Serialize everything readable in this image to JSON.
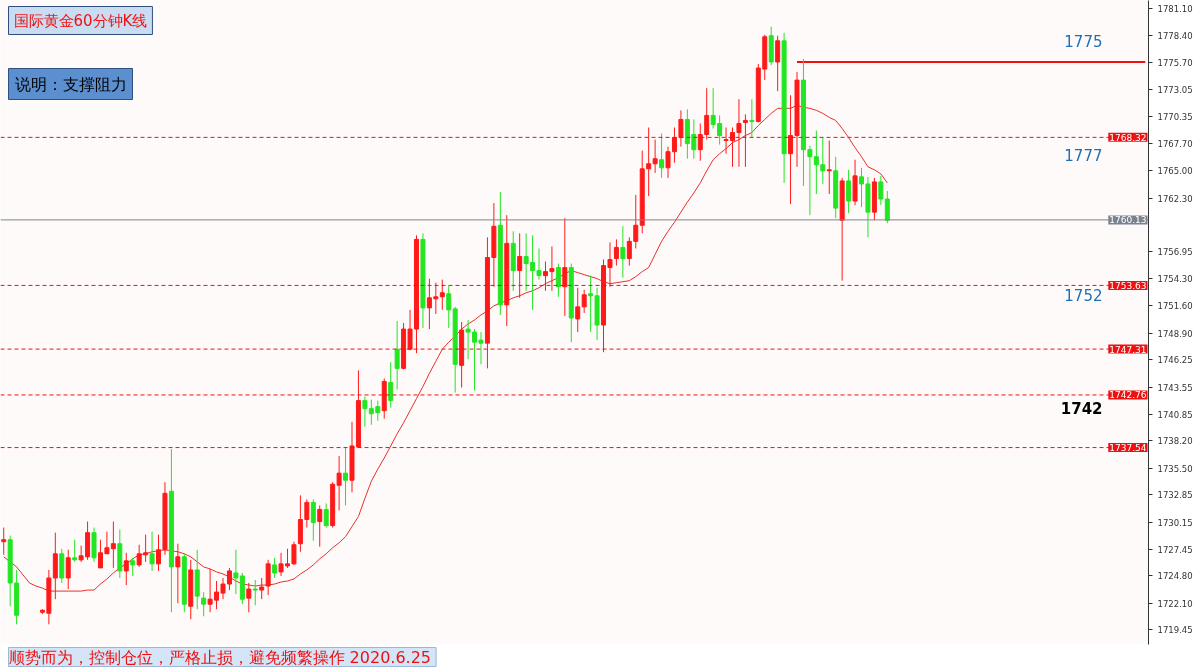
{
  "chart_data": {
    "type": "candlestick",
    "title": "国际黄金60分钟K线",
    "subtitle": "说明：支撑阻力",
    "categories": [
      null,
      null,
      null,
      null,
      null,
      null,
      null,
      null,
      null,
      null,
      null,
      null,
      null,
      null,
      null,
      null,
      null,
      null,
      null,
      null,
      null,
      null,
      null,
      null,
      null,
      null,
      null,
      null,
      null,
      null,
      null,
      null,
      null,
      null,
      null,
      null,
      null,
      null,
      null,
      null,
      null,
      null,
      null,
      null,
      null,
      null,
      null,
      null,
      null,
      null,
      null,
      null,
      null,
      null,
      null,
      null,
      null,
      null,
      null,
      null,
      null,
      null,
      null,
      null,
      null,
      null,
      null,
      null,
      null,
      null,
      null,
      null,
      null,
      null,
      null,
      null,
      null,
      null,
      null,
      null,
      null,
      null,
      null,
      null,
      null,
      null,
      null,
      null,
      null,
      null,
      null,
      null,
      null,
      null,
      null,
      null,
      null,
      null,
      null,
      null,
      null,
      null,
      null,
      null,
      null,
      null,
      null,
      null,
      null,
      null,
      null,
      null,
      null,
      null,
      null,
      null,
      null,
      null,
      null,
      null,
      null,
      null,
      null,
      null,
      null,
      null,
      null,
      null,
      null,
      null,
      null,
      null,
      null,
      null,
      null,
      null,
      null,
      null,
      null,
      null,
      null,
      null,
      null,
      null,
      null,
      null,
      null,
      null,
      null,
      null,
      null,
      null,
      null,
      null,
      null,
      null,
      null,
      null,
      null,
      null,
      null,
      null,
      null,
      null,
      null,
      null,
      null,
      null,
      null,
      null,
      null,
      null,
      null,
      null,
      null,
      null,
      null,
      null
    ],
    "ohlc": [
      [
        1728.2,
        1729.6,
        1726.9,
        1728.4
      ],
      [
        1728.4,
        1728.8,
        1721.8,
        1724.1
      ],
      [
        1724.1,
        1725.4,
        1720.0,
        1720.9
      ],
      null,
      null,
      null,
      [
        1721.2,
        1721.5,
        1721.0,
        1721.4
      ],
      [
        1721.1,
        1725.4,
        1720.0,
        1724.6
      ],
      [
        1724.6,
        1729.1,
        1722.5,
        1727.0
      ],
      [
        1727.0,
        1727.5,
        1724.1,
        1724.6
      ],
      [
        1724.6,
        1727.4,
        1723.5,
        1726.6
      ],
      [
        1726.6,
        1728.4,
        1726.2,
        1726.4
      ],
      [
        1726.4,
        1727.8,
        1726.2,
        1726.8
      ],
      [
        1726.7,
        1730.2,
        1726.4,
        1729.1
      ],
      [
        1729.1,
        1729.6,
        1726.2,
        1726.6
      ],
      [
        1725.6,
        1728.4,
        1725.6,
        1727.1
      ],
      [
        1727.0,
        1729.2,
        1727.0,
        1727.6
      ],
      [
        1727.5,
        1730.2,
        1725.6,
        1728.0
      ],
      [
        1728.0,
        1729.4,
        1724.6,
        1725.3
      ],
      [
        1725.3,
        1727.1,
        1723.9,
        1726.3
      ],
      [
        1726.3,
        1726.6,
        1724.8,
        1725.9
      ],
      [
        1725.9,
        1727.9,
        1725.7,
        1727.0
      ],
      [
        1726.9,
        1728.9,
        1726.2,
        1727.1
      ],
      [
        1727.0,
        1729.2,
        1725.3,
        1726.0
      ],
      [
        1726.0,
        1728.9,
        1725.3,
        1727.4
      ],
      [
        1727.4,
        1734.1,
        1726.9,
        1733.0
      ],
      [
        1733.2,
        1737.4,
        1721.2,
        1725.7
      ],
      [
        1725.7,
        1728.0,
        1722.1,
        1726.7
      ],
      [
        1726.7,
        1727.0,
        1721.2,
        1722.0
      ],
      [
        1721.8,
        1726.4,
        1720.5,
        1725.4
      ],
      [
        1725.4,
        1727.4,
        1721.5,
        1722.8
      ],
      [
        1722.6,
        1723.2,
        1720.8,
        1722.0
      ],
      [
        1722.0,
        1725.5,
        1721.2,
        1722.5
      ],
      [
        1722.4,
        1724.3,
        1721.5,
        1723.2
      ],
      [
        1723.1,
        1724.6,
        1722.5,
        1724.0
      ],
      [
        1724.0,
        1725.6,
        1723.4,
        1725.3
      ],
      [
        1725.1,
        1727.4,
        1723.0,
        1724.6
      ],
      [
        1724.8,
        1725.1,
        1722.0,
        1722.5
      ],
      [
        1722.6,
        1724.1,
        1721.2,
        1723.5
      ],
      [
        1723.5,
        1724.4,
        1721.9,
        1723.4
      ],
      [
        1723.4,
        1724.6,
        1722.5,
        1723.7
      ],
      [
        1723.8,
        1726.4,
        1722.9,
        1726.0
      ],
      [
        1725.9,
        1726.6,
        1724.6,
        1725.1
      ],
      [
        1725.2,
        1727.1,
        1724.8,
        1726.0
      ],
      [
        1725.8,
        1727.5,
        1725.6,
        1726.0
      ],
      [
        1726.0,
        1728.2,
        1725.9,
        1727.9
      ],
      [
        1728.0,
        1732.8,
        1727.2,
        1730.4
      ],
      [
        1730.4,
        1732.4,
        1729.6,
        1732.1
      ],
      [
        1732.1,
        1732.4,
        1728.3,
        1730.1
      ],
      [
        1730.2,
        1731.8,
        1727.7,
        1731.4
      ],
      [
        1731.4,
        1732.0,
        1729.6,
        1729.8
      ],
      [
        1729.8,
        1734.1,
        1729.6,
        1733.9
      ],
      [
        1733.8,
        1736.7,
        1731.3,
        1735.0
      ],
      [
        1735.0,
        1737.6,
        1731.8,
        1734.3
      ],
      [
        1734.3,
        1740.1,
        1733.1,
        1737.7
      ],
      [
        1737.6,
        1745.2,
        1737.5,
        1742.2
      ],
      [
        1742.2,
        1742.6,
        1739.6,
        1741.4
      ],
      [
        1741.4,
        1742.3,
        1739.8,
        1740.9
      ],
      [
        1741.6,
        1742.2,
        1740.2,
        1741.0
      ],
      [
        1741.2,
        1744.4,
        1740.4,
        1744.1
      ],
      [
        1744.0,
        1746.0,
        1741.5,
        1742.2
      ],
      [
        1747.3,
        1750.1,
        1743.3,
        1745.4
      ],
      [
        1745.4,
        1749.9,
        1745.3,
        1749.3
      ],
      [
        1747.3,
        1751.2,
        1747.2,
        1749.3
      ],
      [
        1749.3,
        1758.6,
        1746.9,
        1758.2
      ],
      [
        1758.2,
        1758.8,
        1749.4,
        1751.4
      ],
      [
        1751.4,
        1754.3,
        1749.3,
        1752.4
      ],
      [
        1752.3,
        1753.9,
        1750.8,
        1752.5
      ],
      [
        1752.5,
        1754.2,
        1751.2,
        1752.9
      ],
      [
        1752.8,
        1753.6,
        1749.4,
        1751.2
      ],
      [
        1751.3,
        1751.5,
        1743.0,
        1745.8
      ],
      [
        1745.7,
        1750.0,
        1743.5,
        1749.2
      ],
      [
        1749.3,
        1750.2,
        1746.3,
        1749.0
      ],
      [
        1749.0,
        1749.3,
        1743.2,
        1748.0
      ],
      [
        1748.2,
        1749.0,
        1745.8,
        1747.9
      ],
      [
        1747.9,
        1758.4,
        1745.4,
        1756.4
      ],
      [
        1756.4,
        1761.8,
        1753.5,
        1759.5
      ],
      [
        1759.6,
        1762.9,
        1750.7,
        1751.7
      ],
      [
        1751.7,
        1760.6,
        1749.6,
        1757.8
      ],
      [
        1757.8,
        1759.0,
        1753.1,
        1755.1
      ],
      [
        1755.1,
        1758.8,
        1752.4,
        1756.5
      ],
      [
        1756.5,
        1758.8,
        1753.1,
        1755.8
      ],
      [
        1755.9,
        1758.6,
        1751.2,
        1755.1
      ],
      [
        1755.1,
        1757.3,
        1754.2,
        1754.6
      ],
      [
        1754.6,
        1756.0,
        1753.1,
        1755.0
      ],
      [
        1755.0,
        1757.5,
        1753.1,
        1755.3
      ],
      [
        1755.4,
        1755.8,
        1752.5,
        1753.5
      ],
      [
        1753.5,
        1760.3,
        1750.6,
        1755.4
      ],
      [
        1755.4,
        1755.8,
        1748.0,
        1750.4
      ],
      [
        1750.3,
        1753.4,
        1749.0,
        1751.5
      ],
      [
        1751.5,
        1753.2,
        1750.9,
        1752.7
      ],
      [
        1752.8,
        1754.6,
        1749.0,
        1752.6
      ],
      [
        1752.6,
        1753.4,
        1748.2,
        1749.7
      ],
      [
        1749.7,
        1756.2,
        1747.0,
        1755.6
      ],
      [
        1755.4,
        1757.9,
        1753.5,
        1756.2
      ],
      [
        1756.3,
        1758.2,
        1755.6,
        1757.4
      ],
      [
        1757.4,
        1759.5,
        1754.4,
        1756.3
      ],
      [
        1756.3,
        1758.4,
        1755.6,
        1758.0
      ],
      [
        1758.0,
        1762.6,
        1757.3,
        1759.6
      ],
      [
        1759.6,
        1767.0,
        1758.8,
        1765.2
      ],
      [
        1765.2,
        1769.3,
        1762.5,
        1765.7
      ],
      [
        1765.7,
        1768.1,
        1764.8,
        1766.2
      ],
      [
        1766.1,
        1768.7,
        1764.3,
        1765.3
      ],
      [
        1765.3,
        1767.4,
        1764.3,
        1766.9
      ],
      [
        1766.9,
        1769.3,
        1765.8,
        1768.3
      ],
      [
        1768.3,
        1771.0,
        1767.4,
        1770.1
      ],
      [
        1770.1,
        1771.1,
        1766.2,
        1767.7
      ],
      [
        1768.6,
        1770.1,
        1766.2,
        1767.1
      ],
      [
        1767.1,
        1769.7,
        1766.0,
        1768.6
      ],
      [
        1768.6,
        1773.2,
        1768.1,
        1770.5
      ],
      [
        1770.5,
        1773.2,
        1769.2,
        1769.6
      ],
      [
        1769.7,
        1770.5,
        1767.6,
        1768.5
      ],
      [
        1768.0,
        1769.3,
        1766.7,
        1768.1
      ],
      [
        1768.0,
        1769.3,
        1765.4,
        1768.8
      ],
      [
        1768.8,
        1772.1,
        1765.4,
        1769.7
      ],
      [
        1769.8,
        1770.6,
        1765.4,
        1770.0
      ],
      [
        1770.0,
        1772.1,
        1768.3,
        1769.9
      ],
      [
        1769.9,
        1775.6,
        1769.8,
        1775.2
      ],
      [
        1775.1,
        1778.5,
        1774.0,
        1778.3
      ],
      [
        1778.4,
        1779.3,
        1775.5,
        1775.8
      ],
      [
        1775.8,
        1778.4,
        1772.9,
        1777.9
      ],
      [
        1777.9,
        1778.7,
        1763.8,
        1766.7
      ],
      [
        1766.7,
        1772.5,
        1761.7,
        1768.5
      ],
      [
        1768.5,
        1774.8,
        1765.4,
        1774.0
      ],
      [
        1774.0,
        1776.1,
        1763.5,
        1767.1
      ],
      [
        1767.1,
        1767.5,
        1760.6,
        1766.4
      ],
      [
        1766.4,
        1769.0,
        1762.7,
        1765.6
      ],
      [
        1765.6,
        1768.3,
        1763.7,
        1765.0
      ],
      [
        1765.0,
        1768.0,
        1762.7,
        1765.1
      ],
      [
        1765.0,
        1766.4,
        1760.3,
        1761.3
      ],
      [
        1760.1,
        1764.3,
        1754.1,
        1764.0
      ],
      [
        1764.0,
        1765.1,
        1760.8,
        1762.0
      ],
      [
        1762.0,
        1766.1,
        1761.6,
        1764.5
      ],
      [
        1764.4,
        1765.3,
        1761.4,
        1763.7
      ],
      [
        1763.7,
        1764.4,
        1758.4,
        1760.9
      ],
      [
        1760.9,
        1764.3,
        1760.1,
        1763.9
      ],
      [
        1763.9,
        1764.5,
        1761.6,
        1762.2
      ],
      [
        1762.2,
        1763.0,
        1759.8,
        1760.1
      ],
      null,
      null,
      null,
      null,
      null,
      null,
      null,
      null,
      null,
      null,
      null,
      null,
      null,
      null,
      null,
      null,
      null,
      null,
      null,
      null,
      null,
      null,
      null,
      null,
      null,
      null,
      null,
      null,
      null,
      null,
      null,
      null,
      null,
      null,
      null,
      null,
      null,
      null,
      null,
      null
    ],
    "colors": [
      "#ff1a1a",
      "#22e622",
      "#22e622",
      null,
      null,
      null,
      "#ff1a1a",
      "#ff1a1a",
      "#ff1a1a",
      "#22e622",
      "#ff1a1a",
      "#22e622",
      "#ff1a1a",
      "#ff1a1a",
      "#22e622",
      "#ff1a1a",
      "#ff1a1a",
      "#ff1a1a",
      "#22e622",
      "#ff1a1a",
      "#22e622",
      "#ff1a1a",
      "#ff1a1a",
      "#22e622",
      "#ff1a1a",
      "#ff1a1a",
      "#22e622",
      "#ff1a1a",
      "#22e622",
      "#ff1a1a",
      "#22e622",
      "#22e622",
      "#ff1a1a",
      "#ff1a1a",
      "#ff1a1a",
      "#ff1a1a",
      "#22e622",
      "#22e622",
      "#ff1a1a",
      "#22e622",
      "#ff1a1a",
      "#ff1a1a",
      "#22e622",
      "#ff1a1a",
      "#ff1a1a",
      "#ff1a1a",
      "#ff1a1a",
      "#ff1a1a",
      "#22e622",
      "#ff1a1a",
      "#22e622",
      "#ff1a1a",
      "#ff1a1a",
      "#22e622",
      "#ff1a1a",
      "#ff1a1a",
      "#22e622",
      "#22e622",
      "#22e622",
      "#ff1a1a",
      "#22e622",
      "#22e622",
      "#ff1a1a",
      "#ff1a1a",
      "#ff1a1a",
      "#22e622",
      "#ff1a1a",
      "#ff1a1a",
      "#ff1a1a",
      "#22e622",
      "#22e622",
      "#ff1a1a",
      "#22e622",
      "#22e622",
      "#22e622",
      "#ff1a1a",
      "#ff1a1a",
      "#22e622",
      "#ff1a1a",
      "#22e622",
      "#ff1a1a",
      "#22e622",
      "#22e622",
      "#22e622",
      "#ff1a1a",
      "#ff1a1a",
      "#22e622",
      "#ff1a1a",
      "#22e622",
      "#ff1a1a",
      "#ff1a1a",
      "#22e622",
      "#22e622",
      "#ff1a1a",
      "#ff1a1a",
      "#ff1a1a",
      "#22e622",
      "#ff1a1a",
      "#ff1a1a",
      "#ff1a1a",
      "#ff1a1a",
      "#ff1a1a",
      "#22e622",
      "#ff1a1a",
      "#ff1a1a",
      "#ff1a1a",
      "#22e622",
      "#22e622",
      "#ff1a1a",
      "#ff1a1a",
      "#22e622",
      "#22e622",
      "#ff1a1a",
      "#ff1a1a",
      "#ff1a1a",
      "#ff1a1a",
      "#22e622",
      "#ff1a1a",
      "#ff1a1a",
      "#22e622",
      "#ff1a1a",
      "#22e622",
      "#ff1a1a",
      "#ff1a1a",
      "#22e622",
      "#22e622",
      "#22e622",
      "#22e622",
      "#ff1a1a",
      "#22e622",
      "#ff1a1a",
      "#22e622",
      "#ff1a1a",
      "#22e622",
      "#22e622",
      "#ff1a1a",
      "#22e622",
      "#22e622",
      null,
      null,
      null,
      null,
      null,
      null,
      null,
      null,
      null,
      null,
      null,
      null,
      null,
      null,
      null,
      null,
      null,
      null,
      null,
      null,
      null,
      null,
      null,
      null,
      null,
      null,
      null,
      null,
      null,
      null,
      null,
      null,
      null,
      null,
      null,
      null,
      null,
      null,
      null,
      null
    ],
    "series": [
      {
        "type": "line",
        "color": "#e8302a",
        "values": [
          1726.7,
          1726.2,
          1725.7,
          1724.9,
          1724.1,
          1723.8,
          1723.6,
          1723.3,
          1723.3,
          1723.3,
          1723.3,
          1723.3,
          1723.3,
          1723.4,
          1723.4,
          1724.0,
          1724.5,
          1725.1,
          1725.6,
          1726.0,
          1726.5,
          1726.9,
          1727.0,
          1727.2,
          1727.3,
          1727.4,
          1727.3,
          1727.2,
          1727.0,
          1726.7,
          1726.2,
          1725.7,
          1725.5,
          1725.2,
          1725.0,
          1724.7,
          1724.3,
          1724.0,
          1723.9,
          1723.8,
          1723.9,
          1723.9,
          1724.0,
          1724.2,
          1724.3,
          1724.5,
          1725.0,
          1725.4,
          1725.9,
          1726.5,
          1727.0,
          1727.6,
          1728.1,
          1728.7,
          1729.7,
          1730.7,
          1732.5,
          1734.2,
          1735.4,
          1736.5,
          1737.7,
          1738.9,
          1740.0,
          1741.2,
          1742.4,
          1743.6,
          1744.9,
          1746.1,
          1747.3,
          1748.0,
          1748.6,
          1749.3,
          1749.8,
          1750.2,
          1750.7,
          1751.1,
          1751.6,
          1751.9,
          1752.1,
          1752.4,
          1752.6,
          1752.9,
          1753.1,
          1753.4,
          1753.8,
          1754.1,
          1754.4,
          1754.8,
          1755.1,
          1754.9,
          1754.7,
          1754.5,
          1754.3,
          1754.0,
          1753.8,
          1753.9,
          1754.0,
          1754.1,
          1754.5,
          1755.0,
          1755.4,
          1756.7,
          1758.0,
          1759.0,
          1759.9,
          1760.9,
          1761.9,
          1762.8,
          1763.8,
          1765.0,
          1766.1,
          1766.7,
          1767.2,
          1767.8,
          1768.1,
          1768.5,
          1768.8,
          1769.5,
          1770.1,
          1770.7,
          1771.2,
          1771.2,
          1771.2,
          1771.5,
          1771.3,
          1771.2,
          1771.0,
          1770.7,
          1770.3,
          1770.0,
          1769.2,
          1768.3,
          1767.3,
          1766.4,
          1765.4,
          1765.1,
          1764.7,
          1763.8,
          null,
          null,
          null,
          null,
          null,
          null,
          null,
          null,
          null,
          null,
          null,
          null,
          null,
          null,
          null,
          null,
          null,
          null,
          null,
          null,
          null,
          null,
          null,
          null,
          null,
          null,
          null,
          null,
          null,
          null,
          null,
          null,
          null,
          null,
          null,
          null,
          null,
          null,
          null,
          null
        ]
      },
      {
        "type": "line",
        "color": "#ee1111",
        "values": [
          null,
          null,
          null,
          null,
          null,
          null,
          null,
          null,
          null,
          null,
          null,
          null,
          null,
          null,
          null,
          null,
          null,
          null,
          null,
          null,
          null,
          null,
          null,
          null,
          null,
          null,
          null,
          null,
          null,
          null,
          null,
          null,
          null,
          null,
          null,
          null,
          null,
          null,
          null,
          null,
          null,
          null,
          null,
          null,
          null,
          null,
          null,
          null,
          null,
          null,
          null,
          null,
          null,
          null,
          null,
          null,
          null,
          null,
          null,
          null,
          null,
          null,
          null,
          null,
          null,
          null,
          null,
          null,
          null,
          null,
          null,
          null,
          null,
          null,
          null,
          null,
          null,
          null,
          null,
          null,
          null,
          null,
          null,
          null,
          null,
          null,
          null,
          null,
          null,
          null,
          null,
          null,
          null,
          null,
          null,
          null,
          null,
          null,
          null,
          null,
          null,
          null,
          null,
          null,
          null,
          null,
          null,
          null,
          null,
          null,
          null,
          null,
          null,
          null,
          null,
          null,
          null,
          null,
          null,
          null,
          null,
          null,
          null,
          1775.8,
          1775.8,
          1775.8,
          1775.8,
          1775.8,
          1775.8,
          1775.8,
          1775.8,
          1775.8,
          1775.8,
          1775.8,
          1775.8,
          1775.8,
          1775.8,
          1775.8,
          1775.8,
          1775.8,
          1775.8,
          1775.8,
          1775.8,
          1775.8,
          1775.8,
          1775.8,
          1775.8,
          1775.8,
          1775.8,
          1775.8,
          1775.8,
          1775.8,
          1775.8,
          1775.8,
          1775.8,
          1775.8,
          1775.8,
          1775.8,
          1775.8,
          1775.8,
          1775.8,
          1775.8,
          1775.8,
          1775.8,
          1775.8,
          1775.8,
          1775.8,
          1775.8,
          1775.8,
          1775.8,
          1775.8,
          1775.8,
          1775.8,
          1775.8,
          1775.8,
          1775.8,
          1775.8,
          1775.8
        ]
      }
    ],
    "ylim": [
      1718.0,
      1781.9
    ],
    "yticks": [
      {
        "value": 1781.1,
        "label": "1781.10"
      },
      {
        "value": 1778.4,
        "label": "1778.40"
      },
      {
        "value": 1775.7,
        "label": "1775.70"
      },
      {
        "value": 1773.05,
        "label": "1773.05"
      },
      {
        "value": 1770.35,
        "label": "1770.35"
      },
      {
        "value": 1767.7,
        "label": "1767.70"
      },
      {
        "value": 1765.0,
        "label": "1765.00"
      },
      {
        "value": 1762.3,
        "label": "1762.30"
      },
      {
        "value": 1756.95,
        "label": "1756.95"
      },
      {
        "value": 1754.3,
        "label": "1754.30"
      },
      {
        "value": 1751.6,
        "label": "1751.60"
      },
      {
        "value": 1748.9,
        "label": "1748.90"
      },
      {
        "value": 1746.25,
        "label": "1746.25"
      },
      {
        "value": 1743.55,
        "label": "1743.55"
      },
      {
        "value": 1740.85,
        "label": "1740.85"
      },
      {
        "value": 1738.2,
        "label": "1738.20"
      },
      {
        "value": 1735.5,
        "label": "1735.50"
      },
      {
        "value": 1732.85,
        "label": "1732.85"
      },
      {
        "value": 1730.15,
        "label": "1730.15"
      },
      {
        "value": 1727.45,
        "label": "1727.45"
      },
      {
        "value": 1724.8,
        "label": "1724.80"
      },
      {
        "value": 1722.1,
        "label": "1722.10"
      },
      {
        "value": 1719.45,
        "label": "1719.45"
      }
    ],
    "ref_lines": [
      {
        "axis": "y",
        "value": 1768.32,
        "label": "1768.32",
        "color": "#ee1111",
        "line_style": "dashed"
      },
      {
        "axis": "y",
        "value": 1760.13,
        "label": "1760.13",
        "color": "#7a8290",
        "line_style": "solid"
      },
      {
        "axis": "y",
        "value": 1753.63,
        "label": "1753.63",
        "color": "#ee1111",
        "line_style": "dashed"
      },
      {
        "axis": "y",
        "value": 1747.31,
        "label": "1747.31",
        "color": "#ee1111",
        "line_style": "dashed"
      },
      {
        "axis": "y",
        "value": 1742.76,
        "label": "1742.76",
        "color": "#ee1111",
        "line_style": "dashed"
      },
      {
        "axis": "y",
        "value": 1737.54,
        "label": "1737.54",
        "color": "#ee1111",
        "line_style": "dashed"
      }
    ],
    "annotations": [
      "1775",
      "1777",
      "1752",
      "1742",
      "顺势而为，控制仓位，严格止损，避免频繁操作  2020.6.25"
    ],
    "tick_labels": "y",
    "grid": false
  }
}
